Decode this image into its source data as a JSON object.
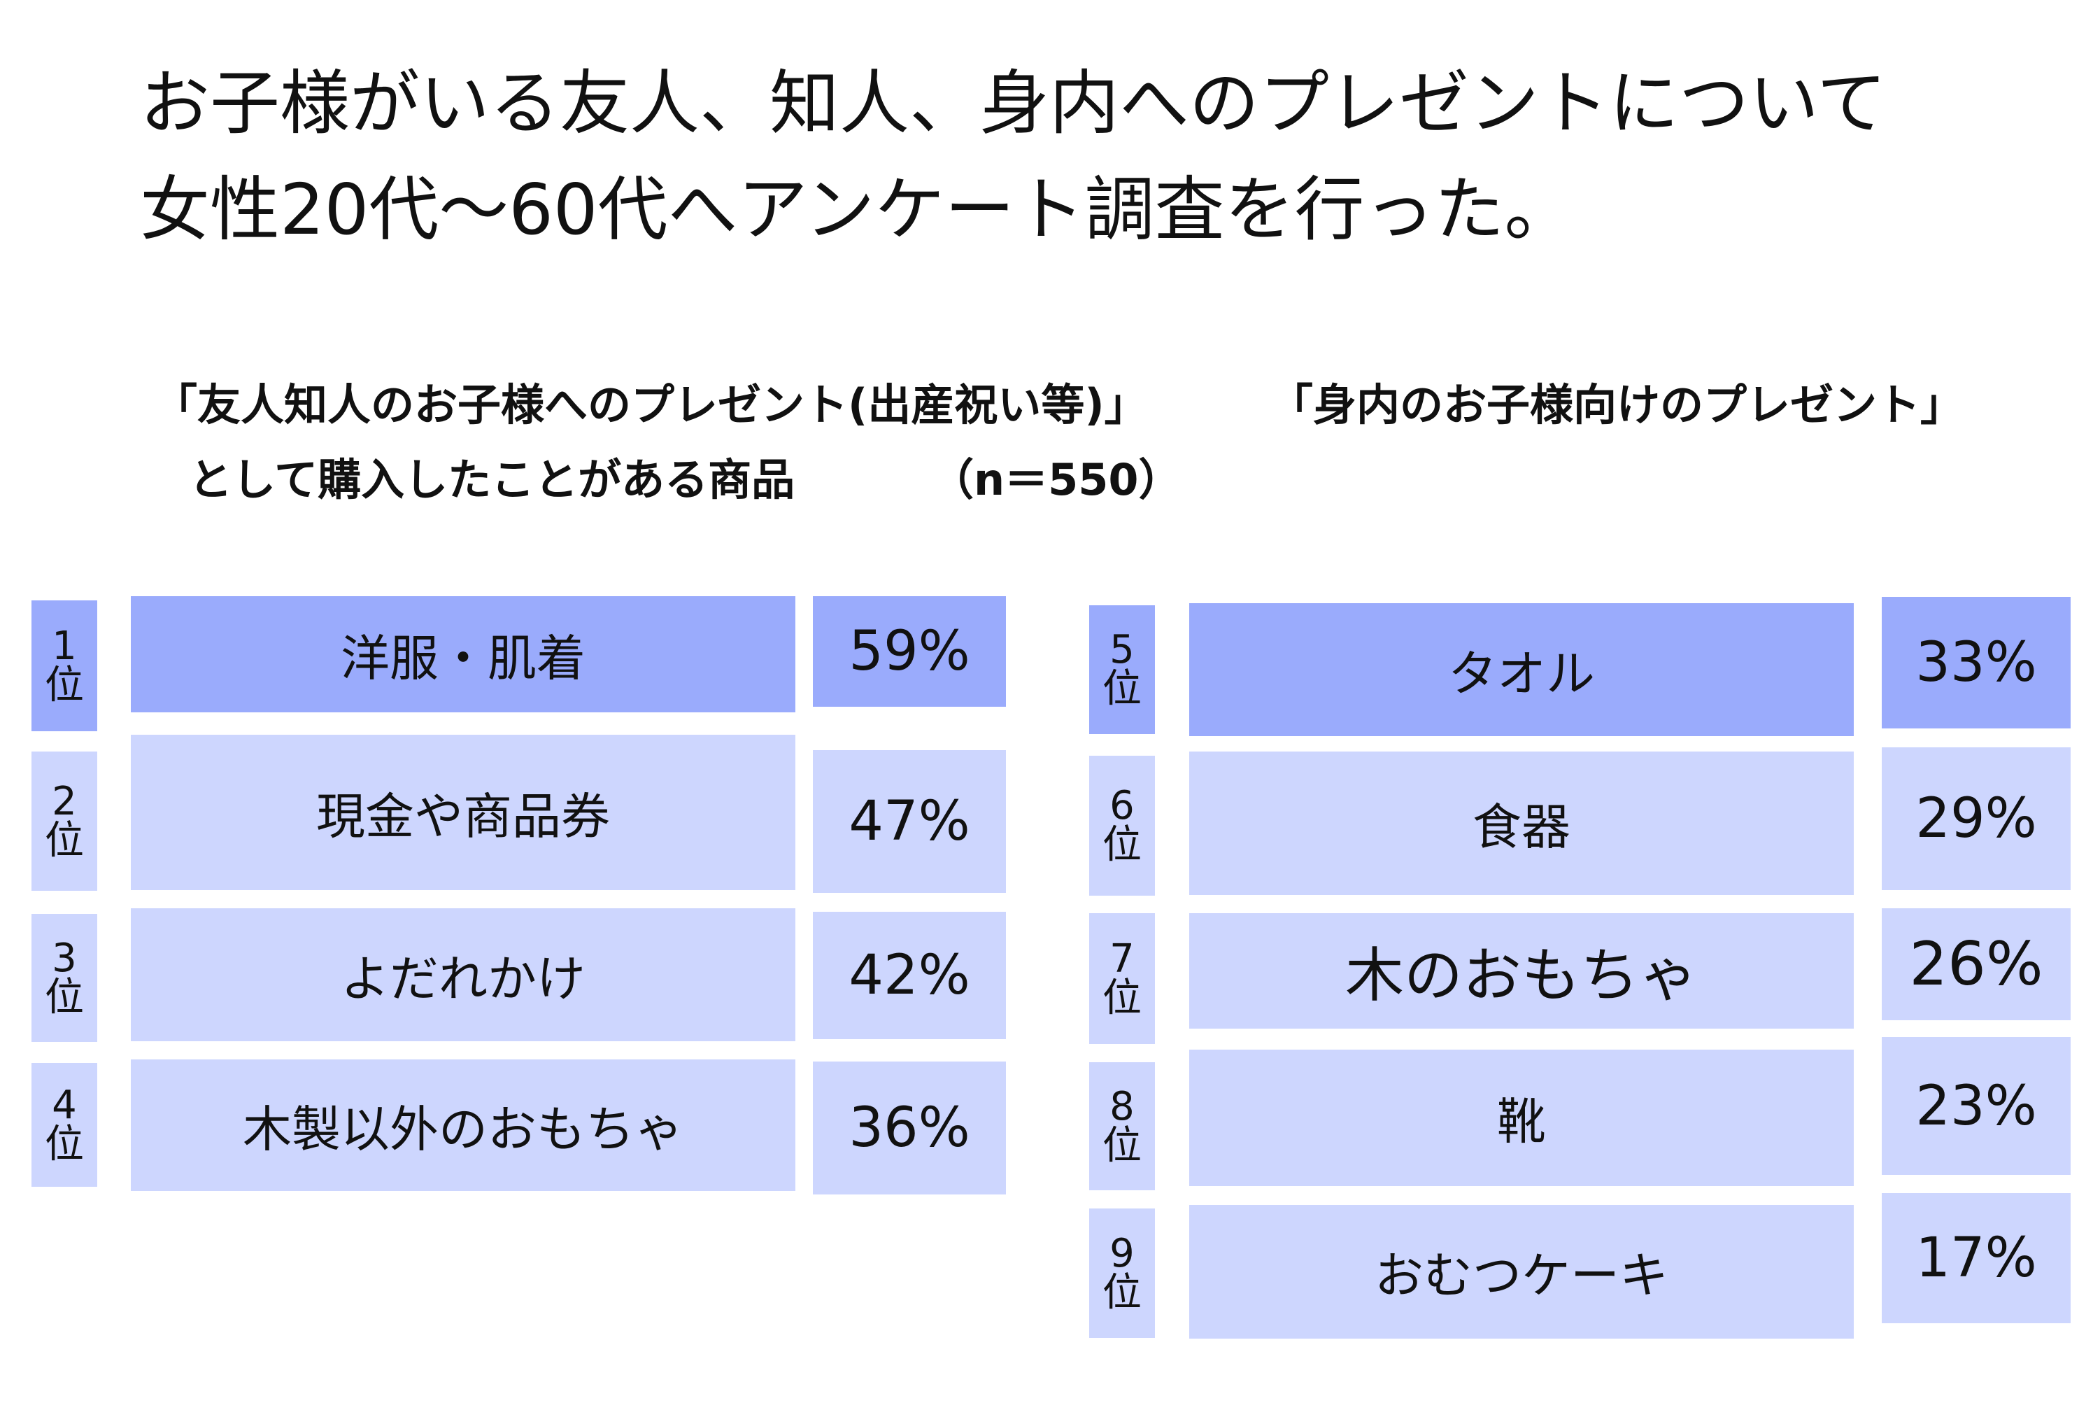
{
  "heading": {
    "line1": "お子様がいる友人、知人、身内へのプレゼントについて",
    "line2": "女性20代～60代へアンケート調査を行った。"
  },
  "subtitle": {
    "left_line1": "「友人知人のお子様へのプレゼント(出産祝い等)」",
    "right_line1": "「身内のお子様向けのプレゼント」",
    "line2_text": "として購入したことがある商品",
    "sample": "（n＝550）"
  },
  "colors": {
    "top": "#9aabfc",
    "rest": "#cdd6fe"
  },
  "rank_suffix": "位",
  "chart_data": {
    "type": "table",
    "items": [
      {
        "rank": "1",
        "label": "洋服・肌着",
        "value": 59,
        "display": "59%"
      },
      {
        "rank": "2",
        "label": "現金や商品券",
        "value": 47,
        "display": "47%"
      },
      {
        "rank": "3",
        "label": "よだれかけ",
        "value": 42,
        "display": "42%"
      },
      {
        "rank": "4",
        "label": "木製以外のおもちゃ",
        "value": 36,
        "display": "36%"
      },
      {
        "rank": "5",
        "label": "タオル",
        "value": 33,
        "display": "33%"
      },
      {
        "rank": "6",
        "label": "食器",
        "value": 29,
        "display": "29%"
      },
      {
        "rank": "7",
        "label": "木のおもちゃ",
        "value": 26,
        "display": "26%"
      },
      {
        "rank": "8",
        "label": "靴",
        "value": 23,
        "display": "23%"
      },
      {
        "rank": "9",
        "label": "おむつケーキ",
        "value": 17,
        "display": "17%"
      }
    ]
  }
}
